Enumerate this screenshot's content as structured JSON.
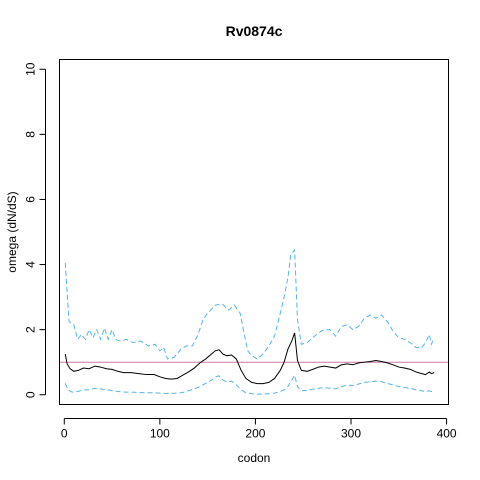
{
  "chart_data": {
    "type": "line",
    "title": "Rv0874c",
    "xlabel": "codon",
    "ylabel": "omega (dN/dS)",
    "xlim": [
      -5,
      402
    ],
    "ylim": [
      -0.3,
      10.3
    ],
    "x_ticks": [
      0,
      100,
      200,
      300,
      400
    ],
    "y_ticks": [
      0,
      2,
      4,
      6,
      8,
      10
    ],
    "grid": false,
    "reference_line": {
      "y": 1,
      "color": "#cc79a7"
    },
    "colors": {
      "estimate": "#000000",
      "bounds": "#56b4e9"
    },
    "series": [
      {
        "role": "upper",
        "style": "dashed",
        "points": [
          [
            1,
            4.05
          ],
          [
            5,
            2.25
          ],
          [
            10,
            2.15
          ],
          [
            14,
            1.7
          ],
          [
            18,
            1.85
          ],
          [
            22,
            1.7
          ],
          [
            26,
            2.0
          ],
          [
            30,
            1.75
          ],
          [
            34,
            2.0
          ],
          [
            38,
            1.7
          ],
          [
            42,
            2.05
          ],
          [
            46,
            1.7
          ],
          [
            50,
            2.0
          ],
          [
            54,
            1.7
          ],
          [
            58,
            1.65
          ],
          [
            65,
            1.7
          ],
          [
            72,
            1.6
          ],
          [
            80,
            1.65
          ],
          [
            88,
            1.5
          ],
          [
            95,
            1.55
          ],
          [
            100,
            1.35
          ],
          [
            104,
            1.45
          ],
          [
            108,
            1.1
          ],
          [
            115,
            1.15
          ],
          [
            122,
            1.4
          ],
          [
            128,
            1.5
          ],
          [
            134,
            1.5
          ],
          [
            140,
            1.85
          ],
          [
            145,
            2.3
          ],
          [
            150,
            2.5
          ],
          [
            158,
            2.75
          ],
          [
            165,
            2.8
          ],
          [
            172,
            2.6
          ],
          [
            178,
            2.75
          ],
          [
            184,
            2.5
          ],
          [
            188,
            1.9
          ],
          [
            192,
            1.35
          ],
          [
            196,
            1.2
          ],
          [
            202,
            1.1
          ],
          [
            208,
            1.25
          ],
          [
            214,
            1.5
          ],
          [
            220,
            1.8
          ],
          [
            226,
            2.5
          ],
          [
            230,
            3.0
          ],
          [
            234,
            3.6
          ],
          [
            237,
            4.3
          ],
          [
            241,
            4.45
          ],
          [
            244,
            2.3
          ],
          [
            248,
            1.55
          ],
          [
            254,
            1.6
          ],
          [
            260,
            1.75
          ],
          [
            266,
            1.9
          ],
          [
            272,
            2.0
          ],
          [
            278,
            2.0
          ],
          [
            284,
            1.8
          ],
          [
            290,
            2.1
          ],
          [
            296,
            2.15
          ],
          [
            302,
            2.0
          ],
          [
            308,
            2.1
          ],
          [
            314,
            2.35
          ],
          [
            320,
            2.45
          ],
          [
            326,
            2.35
          ],
          [
            332,
            2.45
          ],
          [
            338,
            2.25
          ],
          [
            344,
            1.95
          ],
          [
            350,
            1.75
          ],
          [
            356,
            1.7
          ],
          [
            362,
            1.6
          ],
          [
            368,
            1.45
          ],
          [
            374,
            1.45
          ],
          [
            378,
            1.6
          ],
          [
            382,
            1.85
          ],
          [
            384,
            1.55
          ],
          [
            387,
            1.75
          ]
        ]
      },
      {
        "role": "estimate",
        "style": "solid",
        "points": [
          [
            1,
            1.25
          ],
          [
            3,
            0.95
          ],
          [
            6,
            0.8
          ],
          [
            10,
            0.72
          ],
          [
            15,
            0.75
          ],
          [
            20,
            0.82
          ],
          [
            26,
            0.8
          ],
          [
            32,
            0.88
          ],
          [
            38,
            0.85
          ],
          [
            44,
            0.8
          ],
          [
            50,
            0.78
          ],
          [
            56,
            0.72
          ],
          [
            62,
            0.68
          ],
          [
            70,
            0.68
          ],
          [
            78,
            0.65
          ],
          [
            86,
            0.62
          ],
          [
            94,
            0.62
          ],
          [
            100,
            0.55
          ],
          [
            106,
            0.5
          ],
          [
            112,
            0.48
          ],
          [
            118,
            0.5
          ],
          [
            124,
            0.6
          ],
          [
            130,
            0.7
          ],
          [
            136,
            0.82
          ],
          [
            142,
            0.98
          ],
          [
            148,
            1.1
          ],
          [
            154,
            1.25
          ],
          [
            158,
            1.35
          ],
          [
            162,
            1.38
          ],
          [
            166,
            1.25
          ],
          [
            170,
            1.2
          ],
          [
            175,
            1.22
          ],
          [
            180,
            1.1
          ],
          [
            185,
            0.75
          ],
          [
            190,
            0.5
          ],
          [
            196,
            0.38
          ],
          [
            202,
            0.34
          ],
          [
            208,
            0.34
          ],
          [
            214,
            0.38
          ],
          [
            220,
            0.5
          ],
          [
            226,
            0.75
          ],
          [
            230,
            1.0
          ],
          [
            234,
            1.4
          ],
          [
            238,
            1.65
          ],
          [
            241,
            1.9
          ],
          [
            244,
            1.05
          ],
          [
            248,
            0.75
          ],
          [
            254,
            0.72
          ],
          [
            260,
            0.78
          ],
          [
            266,
            0.85
          ],
          [
            272,
            0.88
          ],
          [
            278,
            0.85
          ],
          [
            284,
            0.82
          ],
          [
            290,
            0.92
          ],
          [
            296,
            0.95
          ],
          [
            302,
            0.92
          ],
          [
            308,
            0.98
          ],
          [
            314,
            1.0
          ],
          [
            320,
            1.02
          ],
          [
            326,
            1.05
          ],
          [
            332,
            1.02
          ],
          [
            338,
            0.98
          ],
          [
            344,
            0.92
          ],
          [
            350,
            0.85
          ],
          [
            356,
            0.82
          ],
          [
            362,
            0.78
          ],
          [
            368,
            0.7
          ],
          [
            374,
            0.65
          ],
          [
            378,
            0.62
          ],
          [
            382,
            0.7
          ],
          [
            384,
            0.65
          ],
          [
            387,
            0.68
          ]
        ]
      },
      {
        "role": "lower",
        "style": "dashed",
        "points": [
          [
            1,
            0.35
          ],
          [
            4,
            0.15
          ],
          [
            8,
            0.08
          ],
          [
            14,
            0.1
          ],
          [
            20,
            0.15
          ],
          [
            26,
            0.15
          ],
          [
            32,
            0.2
          ],
          [
            38,
            0.18
          ],
          [
            44,
            0.15
          ],
          [
            50,
            0.13
          ],
          [
            56,
            0.1
          ],
          [
            62,
            0.08
          ],
          [
            70,
            0.08
          ],
          [
            78,
            0.07
          ],
          [
            86,
            0.06
          ],
          [
            94,
            0.06
          ],
          [
            100,
            0.05
          ],
          [
            106,
            0.04
          ],
          [
            112,
            0.04
          ],
          [
            118,
            0.05
          ],
          [
            124,
            0.07
          ],
          [
            130,
            0.12
          ],
          [
            136,
            0.18
          ],
          [
            142,
            0.25
          ],
          [
            148,
            0.35
          ],
          [
            154,
            0.45
          ],
          [
            158,
            0.55
          ],
          [
            162,
            0.58
          ],
          [
            166,
            0.45
          ],
          [
            170,
            0.4
          ],
          [
            175,
            0.42
          ],
          [
            180,
            0.3
          ],
          [
            185,
            0.15
          ],
          [
            190,
            0.06
          ],
          [
            196,
            0.03
          ],
          [
            202,
            0.02
          ],
          [
            208,
            0.02
          ],
          [
            214,
            0.03
          ],
          [
            220,
            0.05
          ],
          [
            226,
            0.1
          ],
          [
            230,
            0.15
          ],
          [
            234,
            0.25
          ],
          [
            238,
            0.45
          ],
          [
            241,
            0.6
          ],
          [
            244,
            0.25
          ],
          [
            248,
            0.12
          ],
          [
            254,
            0.13
          ],
          [
            260,
            0.17
          ],
          [
            266,
            0.2
          ],
          [
            272,
            0.22
          ],
          [
            278,
            0.2
          ],
          [
            284,
            0.18
          ],
          [
            290,
            0.25
          ],
          [
            296,
            0.3
          ],
          [
            302,
            0.28
          ],
          [
            308,
            0.33
          ],
          [
            314,
            0.38
          ],
          [
            320,
            0.4
          ],
          [
            326,
            0.42
          ],
          [
            332,
            0.4
          ],
          [
            338,
            0.35
          ],
          [
            344,
            0.3
          ],
          [
            350,
            0.25
          ],
          [
            356,
            0.22
          ],
          [
            362,
            0.2
          ],
          [
            368,
            0.15
          ],
          [
            374,
            0.12
          ],
          [
            378,
            0.1
          ],
          [
            382,
            0.12
          ],
          [
            384,
            0.1
          ],
          [
            387,
            0.1
          ]
        ]
      }
    ]
  }
}
